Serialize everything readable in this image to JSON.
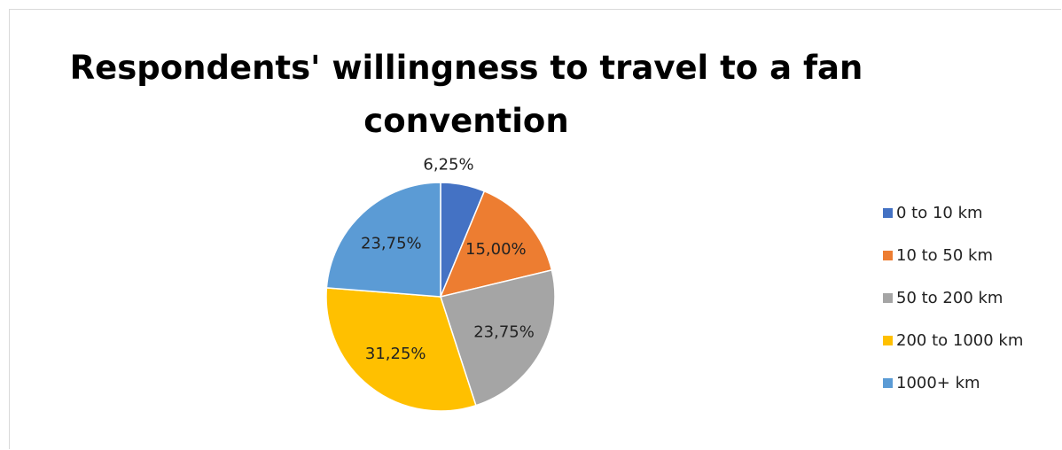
{
  "chart_data": {
    "type": "pie",
    "title": "Respondents' willingness to travel to a fan convention",
    "categories": [
      "0 to 10 km",
      "10 to 50 km",
      "50 to 200 km",
      "200 to 1000 km",
      "1000+ km"
    ],
    "values": [
      6.25,
      15.0,
      23.75,
      31.25,
      23.75
    ],
    "data_labels": [
      "6,25%",
      "15,00%",
      "23,75%",
      "31,25%",
      "23,75%"
    ],
    "colors": [
      "#4472C4",
      "#ED7D31",
      "#A5A5A5",
      "#FFC000",
      "#5B9BD5"
    ],
    "legend_position": "right",
    "start_angle_deg": 0,
    "direction": "clockwise"
  }
}
